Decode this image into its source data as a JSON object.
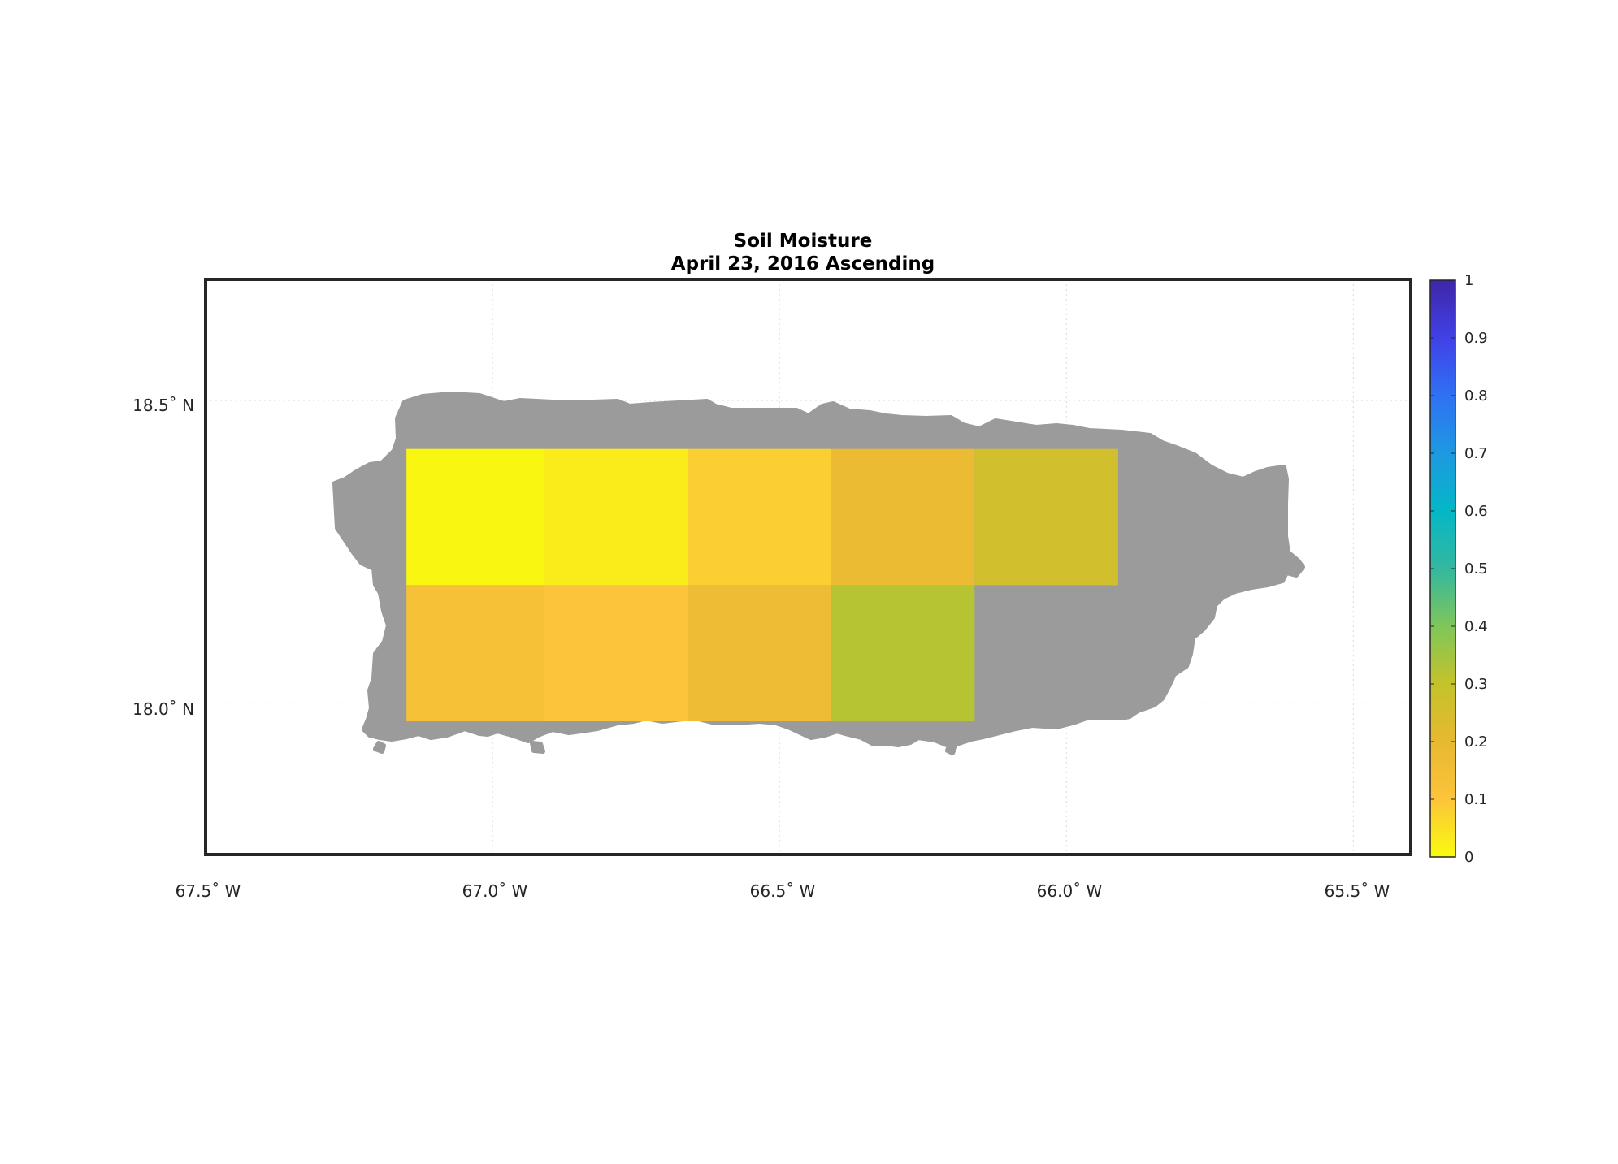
{
  "title": "Soil Moisture",
  "subtitle": "April 23, 2016 Ascending",
  "lon_ticks": [
    "67.5˚ W",
    "67.0˚ W",
    "66.5˚ W",
    "66.0˚ W",
    "65.5˚ W"
  ],
  "lat_ticks": [
    "18.5˚ N",
    "18.0˚ N"
  ],
  "colorbar": {
    "ticks": [
      "0",
      "0.1",
      "0.2",
      "0.3",
      "0.4",
      "0.5",
      "0.6",
      "0.7",
      "0.8",
      "0.9",
      "1"
    ],
    "range": [
      0,
      1
    ],
    "colormap": [
      "#f9fb0e",
      "#fcc43a",
      "#e7b931",
      "#c4c32a",
      "#7fc65a",
      "#33b89f",
      "#05b7c7",
      "#1d99e1",
      "#2f71f4",
      "#4141e6",
      "#3e26a8"
    ]
  },
  "colors": {
    "land": "#9b9b9b",
    "frame": "#262626",
    "grid": "#d9d9d9"
  },
  "chart_data": {
    "type": "heatmap",
    "lon_range": [
      -67.5,
      -65.4
    ],
    "lat_range": [
      17.75,
      18.7
    ],
    "lon_edges": [
      -67.15,
      -66.91,
      -66.66,
      -66.41,
      -66.16,
      -65.91
    ],
    "lat_edges": [
      17.97,
      18.195,
      18.42
    ],
    "cells": [
      {
        "row": 0,
        "col": 0,
        "value": 0.01
      },
      {
        "row": 0,
        "col": 1,
        "value": 0.03
      },
      {
        "row": 0,
        "col": 2,
        "value": 0.08
      },
      {
        "row": 0,
        "col": 3,
        "value": 0.18
      },
      {
        "row": 0,
        "col": 4,
        "value": 0.26
      },
      {
        "row": 1,
        "col": 0,
        "value": 0.13
      },
      {
        "row": 1,
        "col": 1,
        "value": 0.1
      },
      {
        "row": 1,
        "col": 2,
        "value": 0.16
      },
      {
        "row": 1,
        "col": 3,
        "value": 0.32
      }
    ]
  }
}
